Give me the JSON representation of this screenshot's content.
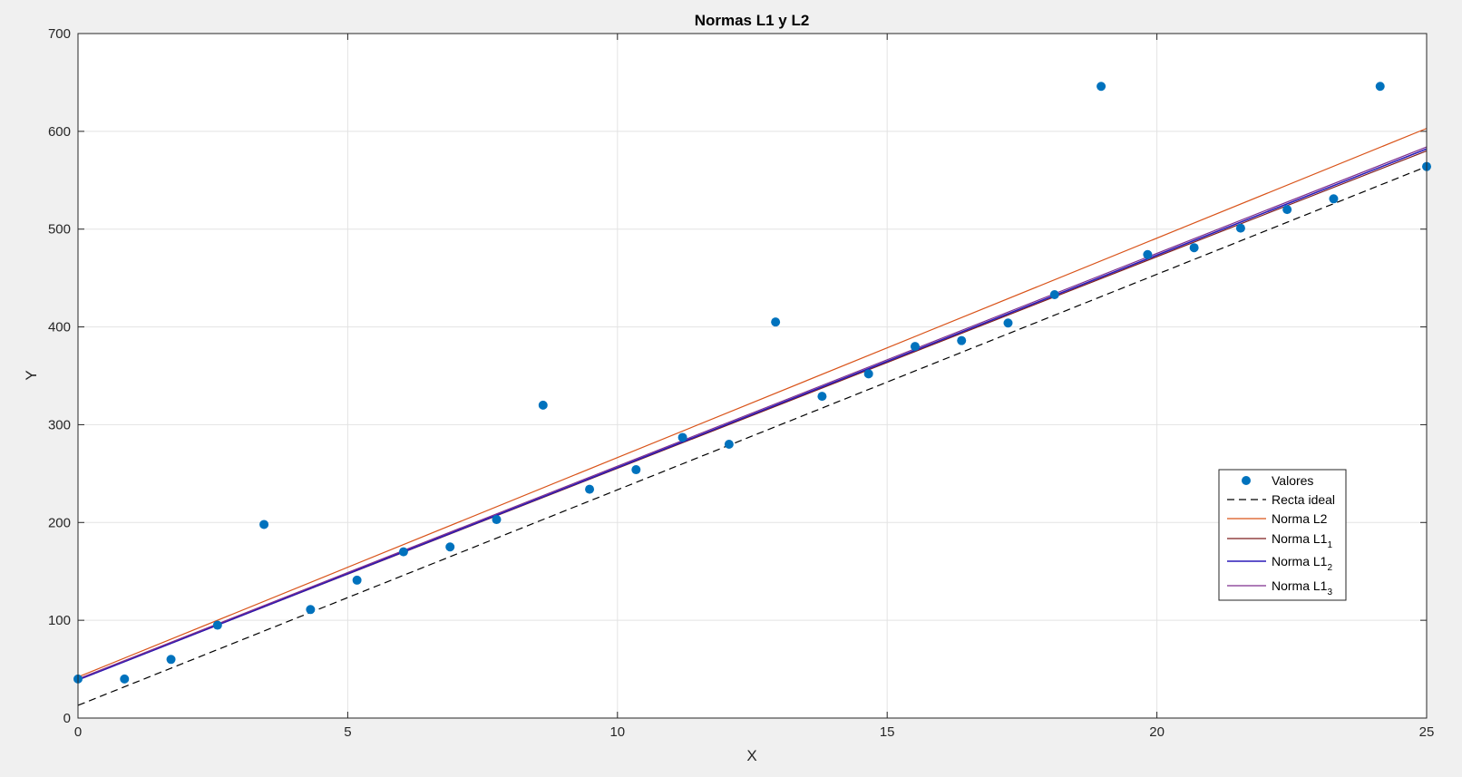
{
  "chart_data": {
    "type": "scatter",
    "title": "Normas L1 y L2",
    "xlabel": "X",
    "ylabel": "Y",
    "xlim": [
      0,
      25
    ],
    "ylim": [
      0,
      700
    ],
    "xticks": [
      0,
      5,
      10,
      15,
      20,
      25
    ],
    "yticks": [
      0,
      100,
      200,
      300,
      400,
      500,
      600,
      700
    ],
    "grid": true,
    "legend_position": "right-middle",
    "points": {
      "name": "Valores",
      "color": "#0072bd",
      "x": [
        0,
        0.862,
        1.724,
        2.586,
        3.448,
        4.31,
        5.172,
        6.034,
        6.897,
        7.759,
        8.621,
        9.483,
        10.345,
        11.207,
        12.069,
        12.931,
        13.793,
        14.655,
        15.517,
        16.379,
        17.241,
        18.103,
        18.966,
        19.828,
        20.69,
        21.552,
        22.414,
        23.276,
        24.138,
        25
      ],
      "y": [
        40,
        40,
        60,
        95,
        198,
        111,
        141,
        170,
        175,
        203,
        320,
        234,
        254,
        287,
        280,
        405,
        329,
        352,
        380,
        386,
        404,
        433,
        646,
        474,
        481,
        501,
        520,
        531,
        646,
        564
      ]
    },
    "lines": [
      {
        "name": "Recta ideal",
        "color": "#000000",
        "dash": "8,5",
        "width": 1.2,
        "x": [
          0,
          25
        ],
        "y": [
          13,
          564
        ]
      },
      {
        "name": "Norma L2",
        "color": "#d95319",
        "dash": "",
        "width": 1.2,
        "x": [
          0,
          25
        ],
        "y": [
          42,
          603
        ]
      },
      {
        "name": "Norma L1",
        "sub": "1",
        "color": "#7e1e1e",
        "dash": "",
        "width": 1.2,
        "x": [
          0,
          25
        ],
        "y": [
          39,
          580
        ]
      },
      {
        "name": "Norma L1",
        "sub": "2",
        "color": "#2a1ab8",
        "dash": "",
        "width": 1.6,
        "x": [
          0,
          25
        ],
        "y": [
          39,
          582
        ]
      },
      {
        "name": "Norma L1",
        "sub": "3",
        "color": "#7e2f8e",
        "dash": "",
        "width": 1.2,
        "x": [
          0,
          25
        ],
        "y": [
          40,
          584
        ]
      }
    ]
  }
}
